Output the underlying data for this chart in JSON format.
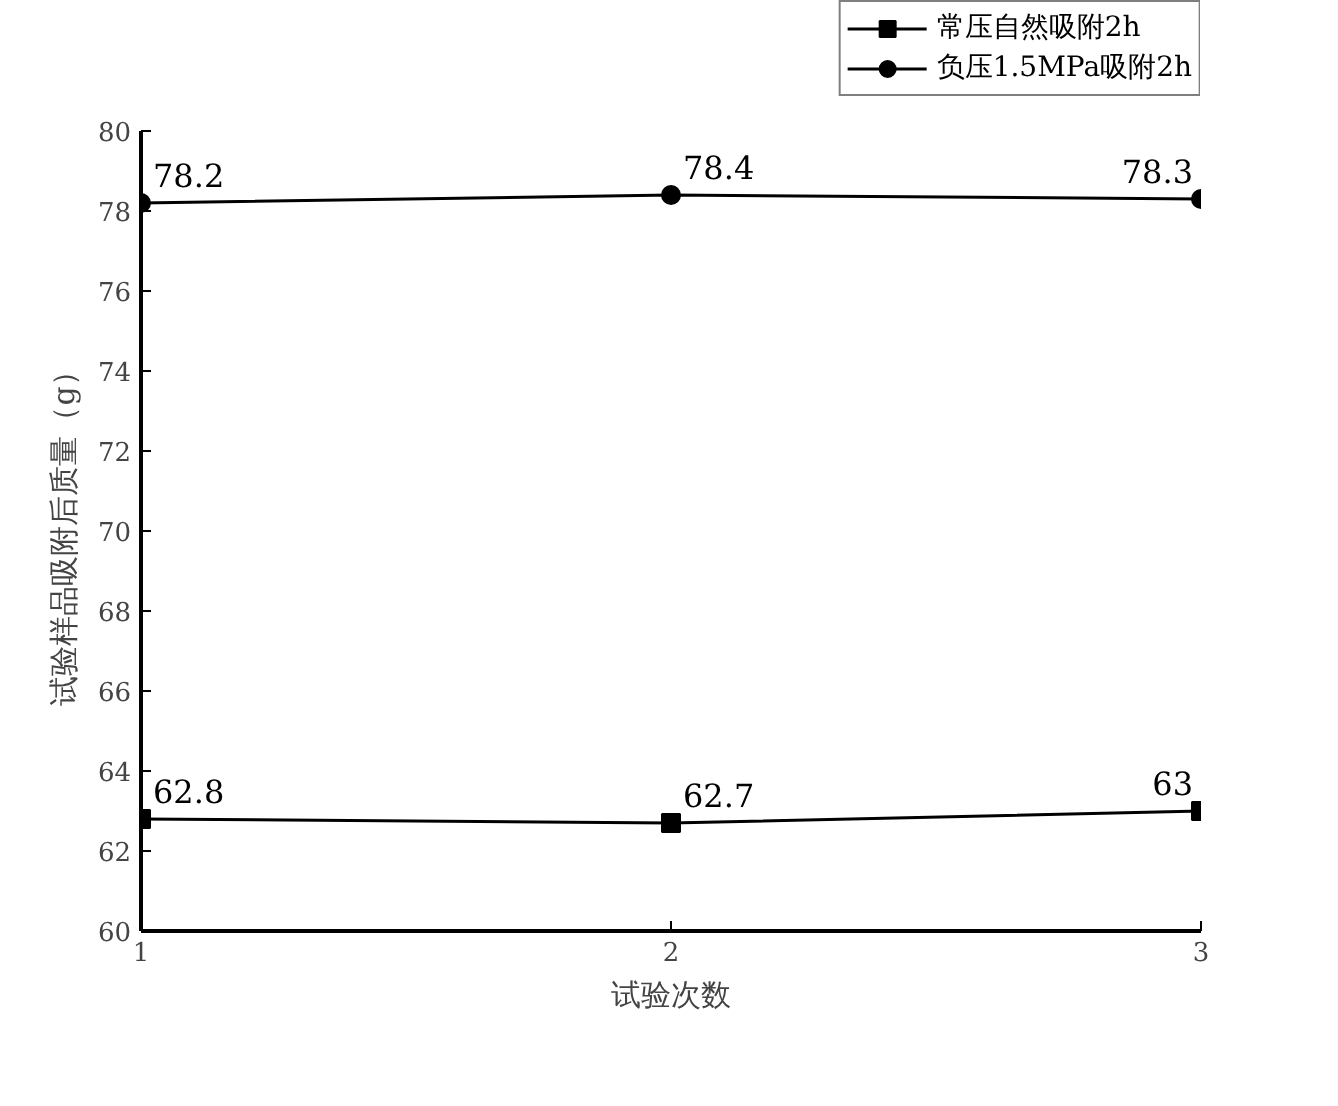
{
  "chart_data": {
    "type": "line",
    "xlabel": "试验次数",
    "ylabel": "试验样品吸附后质量（g）",
    "x": [
      1,
      2,
      3
    ],
    "xlim": [
      1,
      3
    ],
    "xticks": [
      1,
      2,
      3
    ],
    "ylim": [
      60,
      80
    ],
    "yticks": [
      60,
      62,
      64,
      66,
      68,
      70,
      72,
      74,
      76,
      78,
      80
    ],
    "grid": false,
    "legend": "top right",
    "data_labels": true,
    "line_style": "solid",
    "series": [
      {
        "name": "常压自然吸附2h",
        "color": "#000000",
        "marker": "square",
        "values": [
          62.8,
          62.7,
          63
        ]
      },
      {
        "name": "负压1.5MPa吸附2h",
        "color": "#000000",
        "marker": "circle",
        "values": [
          78.2,
          78.4,
          78.3
        ]
      }
    ]
  }
}
